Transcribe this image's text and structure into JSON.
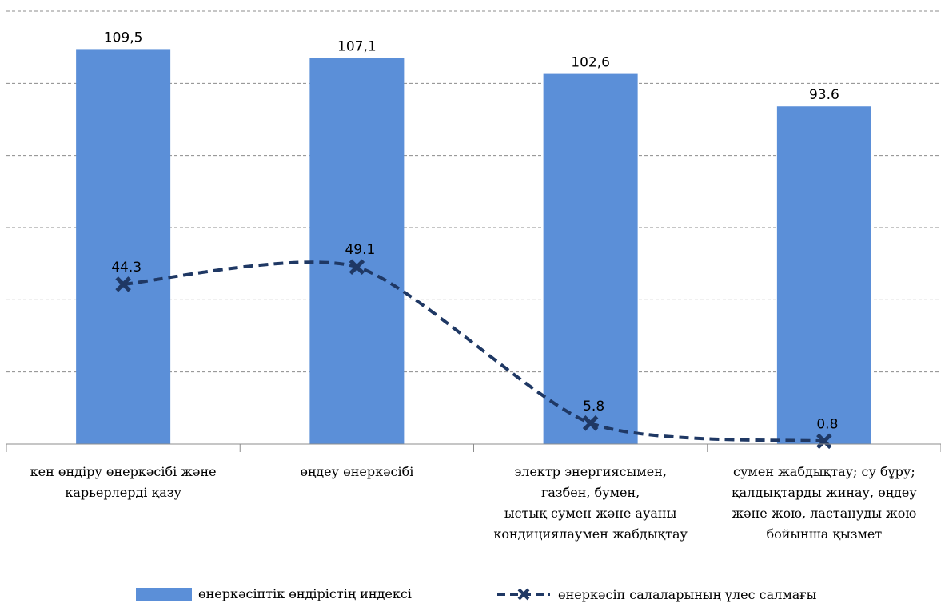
{
  "chart_data": {
    "type": "bar+line",
    "title": "",
    "categories": [
      [
        "кен өндіру өнеркәсібі және",
        "карьерлерді қазу"
      ],
      [
        "өңдеу өнеркәсібі"
      ],
      [
        "электр энергиясымен,",
        "газбен, бумен,",
        "ыстық сумен және ауаны",
        "кондициялаумен жабдықтау"
      ],
      [
        "сумен жабдықтау; су бұру;",
        "қалдықтарды жинау, өңдеу",
        "және жою, ластануды жою",
        "бойынша қызмет"
      ]
    ],
    "series": [
      {
        "name": "өнеркәсіптік өндірістің индексі",
        "kind": "bar",
        "color": "#5B8FD8",
        "values": [
          109.5,
          107.1,
          102.6,
          93.6
        ],
        "labels": [
          "109,5",
          "107,1",
          "102,6",
          "93.6"
        ]
      },
      {
        "name": "өнеркәсіп салаларының үлес салмағы",
        "kind": "line",
        "style": "dashed",
        "marker": "x",
        "color": "#1F3864",
        "values": [
          44.3,
          49.1,
          5.8,
          0.8
        ],
        "labels": [
          "44.3",
          "49.1",
          "5.8",
          "0.8"
        ]
      }
    ],
    "ylim": [
      0,
      120
    ],
    "grid": true,
    "legend_position": "bottom"
  }
}
